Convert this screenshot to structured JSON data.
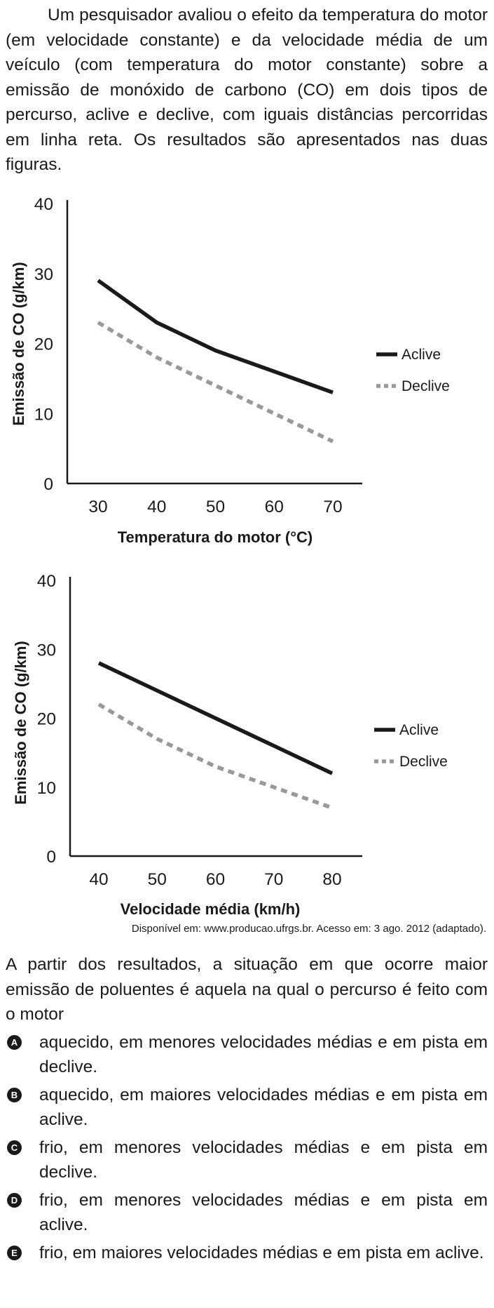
{
  "intro_text": "Um pesquisador avaliou o efeito da temperatura do motor (em velocidade constante) e da velocidade média de um veículo (com temperatura do motor constante) sobre a emissão de monóxido de carbono (CO) em dois tipos de percurso, aclive e declive, com iguais distâncias percorridas em linha reta. Os resultados são apresentados nas duas figuras.",
  "chart_data": [
    {
      "type": "line",
      "xlabel": "Temperatura do motor (°C)",
      "ylabel": "Emissão de CO (g/km)",
      "x": [
        30,
        40,
        50,
        60,
        70
      ],
      "xlim": [
        30,
        70
      ],
      "ylim": [
        0,
        40
      ],
      "yticks": [
        "0",
        "10",
        "20",
        "30",
        "40"
      ],
      "xticks": [
        "30",
        "40",
        "50",
        "60",
        "70"
      ],
      "legend_position": "right",
      "series": [
        {
          "name": "Aclive",
          "values": [
            29,
            23,
            19,
            16,
            13
          ],
          "color": "#1a1a1a",
          "style": "solid"
        },
        {
          "name": "Declive",
          "values": [
            23,
            18,
            14,
            10,
            6
          ],
          "color": "#999999",
          "style": "dashed"
        }
      ]
    },
    {
      "type": "line",
      "xlabel": "Velocidade média (km/h)",
      "ylabel": "Emissão de CO (g/km)",
      "x": [
        40,
        50,
        60,
        70,
        80
      ],
      "xlim": [
        40,
        80
      ],
      "ylim": [
        0,
        40
      ],
      "yticks": [
        "0",
        "10",
        "20",
        "30",
        "40"
      ],
      "xticks": [
        "40",
        "50",
        "60",
        "70",
        "80"
      ],
      "legend_position": "right",
      "series": [
        {
          "name": "Aclive",
          "values": [
            28,
            24,
            20,
            16,
            12
          ],
          "color": "#1a1a1a",
          "style": "solid"
        },
        {
          "name": "Declive",
          "values": [
            22,
            17,
            13,
            10,
            7
          ],
          "color": "#999999",
          "style": "dashed"
        }
      ]
    }
  ],
  "source_text": "Disponível em: www.producao.ufrgs.br. Acesso em: 3 ago. 2012 (adaptado).",
  "question_text": "A partir dos resultados, a situação em que ocorre maior emissão de poluentes é aquela na qual o percurso é feito com o motor",
  "options": [
    {
      "letter": "A",
      "text": "aquecido, em menores velocidades médias e em pista em declive."
    },
    {
      "letter": "B",
      "text": "aquecido, em maiores velocidades médias e em pista em aclive."
    },
    {
      "letter": "C",
      "text": "frio, em menores velocidades médias e em pista em declive."
    },
    {
      "letter": "D",
      "text": "frio, em menores velocidades médias e em pista em aclive."
    },
    {
      "letter": "E",
      "text": "frio, em maiores velocidades médias e em pista em aclive."
    }
  ]
}
